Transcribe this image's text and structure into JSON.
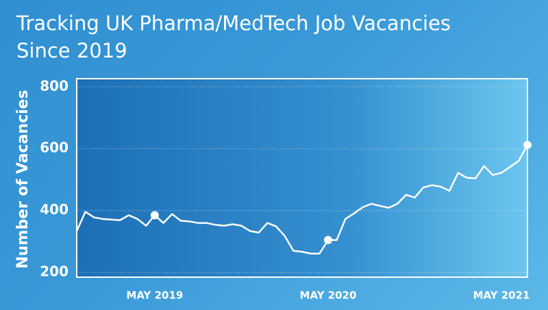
{
  "chart_data": {
    "type": "line",
    "title": "Tracking UK Pharma/MedTech Job Vacancies Since 2019",
    "y_label": "Number of Vacancies",
    "categories": [
      null,
      null,
      null,
      null,
      null,
      null,
      null,
      null,
      null,
      "MAY 2019",
      null,
      null,
      null,
      null,
      null,
      null,
      null,
      null,
      null,
      null,
      null,
      null,
      null,
      null,
      null,
      null,
      null,
      null,
      null,
      "MAY 2020",
      null,
      null,
      null,
      null,
      null,
      null,
      null,
      null,
      null,
      null,
      null,
      null,
      null,
      null,
      null,
      null,
      null,
      null,
      null,
      "MAY 2021",
      null,
      null,
      null
    ],
    "series": [
      {
        "name": "Vacancies",
        "color": "#ffffff",
        "values": [
          334,
          396,
          378,
          373,
          371,
          369,
          385,
          373,
          351,
          385,
          360,
          389,
          367,
          365,
          360,
          360,
          354,
          351,
          356,
          351,
          334,
          329,
          360,
          349,
          318,
          270,
          267,
          261,
          261,
          305,
          305,
          373,
          391,
          411,
          422,
          415,
          409,
          422,
          451,
          442,
          475,
          482,
          477,
          464,
          522,
          506,
          504,
          544,
          515,
          522,
          541,
          561,
          612
        ]
      }
    ],
    "highlight_points": [
      9,
      29,
      52
    ],
    "ylim": [
      185,
      826
    ],
    "yticks": [
      200,
      400,
      600,
      800
    ],
    "grid": true
  }
}
